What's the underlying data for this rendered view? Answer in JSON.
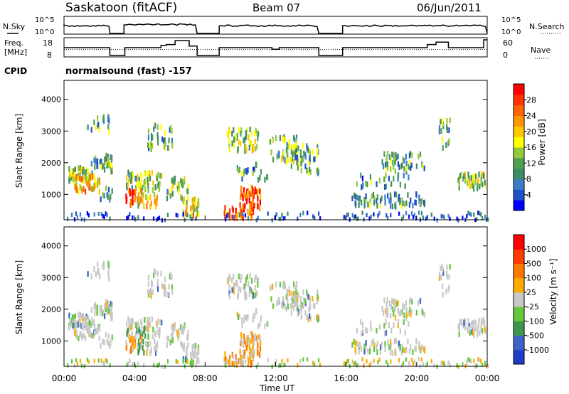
{
  "header": {
    "station": "Saskatoon (fitACF)",
    "beam": "Beam 07",
    "date": "06/Jun/2011"
  },
  "panels": {
    "nsky": {
      "left_label": "N.Sky",
      "right_label": "N.Search",
      "left_ticks": [
        "10^5",
        "10^0"
      ],
      "right_ticks": [
        "10^5",
        "10^0"
      ]
    },
    "freq": {
      "left_label_1": "Freq.",
      "left_label_2": "[MHz]",
      "left_ticks": [
        "18",
        "8"
      ],
      "right_label": "Nave",
      "right_ticks": [
        "60",
        "0"
      ]
    },
    "cpid": {
      "label": "CPID",
      "text": "normalsound (fast) -157"
    }
  },
  "chart_data": [
    {
      "type": "heatmap",
      "name": "power",
      "ylabel": "Slant Range [km]",
      "yticks": [
        1000,
        2000,
        3000,
        4000
      ],
      "ylim": [
        200,
        4600
      ],
      "xlim_hours": [
        0,
        24
      ],
      "colorbar": {
        "label": "Power [dB]",
        "ticks": [
          "28",
          "24",
          "20",
          "16",
          "12",
          "8",
          "4"
        ],
        "colors": [
          "#0000ff",
          "#1e50c8",
          "#3c7dc8",
          "#3c8c64",
          "#50a050",
          "#96c83c",
          "#ffff00",
          "#ffc800",
          "#ff9600",
          "#ff6400",
          "#ff3200",
          "#ff0000"
        ]
      }
    },
    {
      "type": "heatmap",
      "name": "velocity",
      "ylabel": "Slant Range [km]",
      "yticks": [
        1000,
        2000,
        3000,
        4000
      ],
      "ylim": [
        200,
        4600
      ],
      "xlim_hours": [
        0,
        24
      ],
      "xlabel": "Time UT",
      "xticks": [
        "00:00",
        "04:00",
        "08:00",
        "12:00",
        "16:00",
        "20:00",
        "00:00"
      ],
      "colorbar": {
        "label": "Velocity [m s⁻¹]",
        "ticks": [
          "1000",
          "500",
          "100",
          "25",
          "-25",
          "-100",
          "-500",
          "-1000"
        ],
        "colors": [
          "#1e3cc8",
          "#3c64c8",
          "#3c9650",
          "#64c83c",
          "#c8c8c8",
          "#ffaa00",
          "#ff7800",
          "#ff3c00",
          "#ff0000"
        ]
      }
    }
  ]
}
